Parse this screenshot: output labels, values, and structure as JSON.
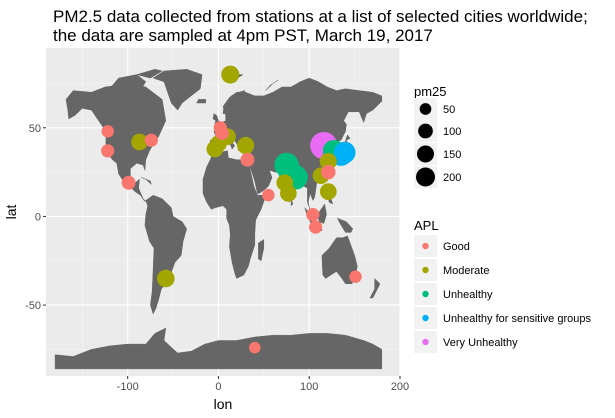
{
  "chart_data": {
    "type": "scatter",
    "title_line1": "PM2.5 data collected from stations at a list of selected cities worldwide;",
    "title_line2": " the data are sampled at 4pm PST, March 19, 2017",
    "xlabel": "lon",
    "ylabel": "lat",
    "xlim": [
      -190,
      200
    ],
    "ylim": [
      -90,
      95
    ],
    "x_ticks": [
      -100,
      0,
      100,
      200
    ],
    "x_tick_labels": [
      "-100",
      "0",
      "100",
      "200"
    ],
    "y_ticks": [
      -50,
      0,
      50
    ],
    "y_tick_labels": [
      "-50",
      "0",
      "50"
    ],
    "grid": true,
    "background": "#EBEBEB",
    "land_color": "#666666",
    "size_legend": {
      "title": "pm25",
      "position": "right",
      "entries": [
        {
          "label": "50",
          "value": 50
        },
        {
          "label": "100",
          "value": 100
        },
        {
          "label": "150",
          "value": 150
        },
        {
          "label": "200",
          "value": 200
        }
      ]
    },
    "color_legend": {
      "title": "APL",
      "position": "right",
      "entries": [
        {
          "label": "Good",
          "color": "#F8766D"
        },
        {
          "label": "Moderate",
          "color": "#A3A500"
        },
        {
          "label": "Unhealthy",
          "color": "#00BF7D"
        },
        {
          "label": "Unhealthy for sensitive groups",
          "color": "#00B0F6"
        },
        {
          "label": "Very Unhealthy",
          "color": "#E76BF3"
        }
      ]
    },
    "points": [
      {
        "lon": -122,
        "lat": 48,
        "pm25": 20,
        "apl": "Good"
      },
      {
        "lon": -122,
        "lat": 37,
        "pm25": 25,
        "apl": "Good"
      },
      {
        "lon": -99,
        "lat": 19,
        "pm25": 30,
        "apl": "Good"
      },
      {
        "lon": -74,
        "lat": 43,
        "pm25": 25,
        "apl": "Good"
      },
      {
        "lon": -87,
        "lat": 42,
        "pm25": 55,
        "apl": "Moderate"
      },
      {
        "lon": -58,
        "lat": -35,
        "pm25": 65,
        "apl": "Moderate"
      },
      {
        "lon": 2,
        "lat": 50,
        "pm25": 25,
        "apl": "Good"
      },
      {
        "lon": 4,
        "lat": 47,
        "pm25": 30,
        "apl": "Good"
      },
      {
        "lon": 13,
        "lat": 80,
        "pm25": 70,
        "apl": "Moderate"
      },
      {
        "lon": 10,
        "lat": 45,
        "pm25": 55,
        "apl": "Moderate"
      },
      {
        "lon": -4,
        "lat": 38,
        "pm25": 55,
        "apl": "Moderate"
      },
      {
        "lon": 0,
        "lat": 41,
        "pm25": 55,
        "apl": "Moderate"
      },
      {
        "lon": 30,
        "lat": 40,
        "pm25": 60,
        "apl": "Moderate"
      },
      {
        "lon": 32,
        "lat": 32,
        "pm25": 30,
        "apl": "Good"
      },
      {
        "lon": 55,
        "lat": 12,
        "pm25": 20,
        "apl": "Good"
      },
      {
        "lon": 75,
        "lat": 29,
        "pm25": 165,
        "apl": "Unhealthy"
      },
      {
        "lon": 79,
        "lat": 25,
        "pm25": 150,
        "apl": "Unhealthy"
      },
      {
        "lon": 85,
        "lat": 22,
        "pm25": 160,
        "apl": "Unhealthy"
      },
      {
        "lon": 73,
        "lat": 19,
        "pm25": 55,
        "apl": "Moderate"
      },
      {
        "lon": 77,
        "lat": 13,
        "pm25": 55,
        "apl": "Moderate"
      },
      {
        "lon": 116,
        "lat": 40,
        "pm25": 215,
        "apl": "Very Unhealthy"
      },
      {
        "lon": 121,
        "lat": 31,
        "pm25": 60,
        "apl": "Moderate"
      },
      {
        "lon": 127,
        "lat": 37,
        "pm25": 120,
        "apl": "Unhealthy"
      },
      {
        "lon": 135,
        "lat": 35,
        "pm25": 140,
        "apl": "Unhealthy for sensitive groups"
      },
      {
        "lon": 139,
        "lat": 36,
        "pm25": 120,
        "apl": "Unhealthy for sensitive groups"
      },
      {
        "lon": 113,
        "lat": 23,
        "pm25": 55,
        "apl": "Moderate"
      },
      {
        "lon": 121,
        "lat": 25,
        "pm25": 35,
        "apl": "Good"
      },
      {
        "lon": 121,
        "lat": 14,
        "pm25": 55,
        "apl": "Moderate"
      },
      {
        "lon": 104,
        "lat": 1,
        "pm25": 25,
        "apl": "Good"
      },
      {
        "lon": 107,
        "lat": -6,
        "pm25": 25,
        "apl": "Good"
      },
      {
        "lon": 151,
        "lat": -34,
        "pm25": 20,
        "apl": "Good"
      },
      {
        "lon": 40,
        "lat": -74,
        "pm25": 15,
        "apl": "Good"
      }
    ]
  }
}
